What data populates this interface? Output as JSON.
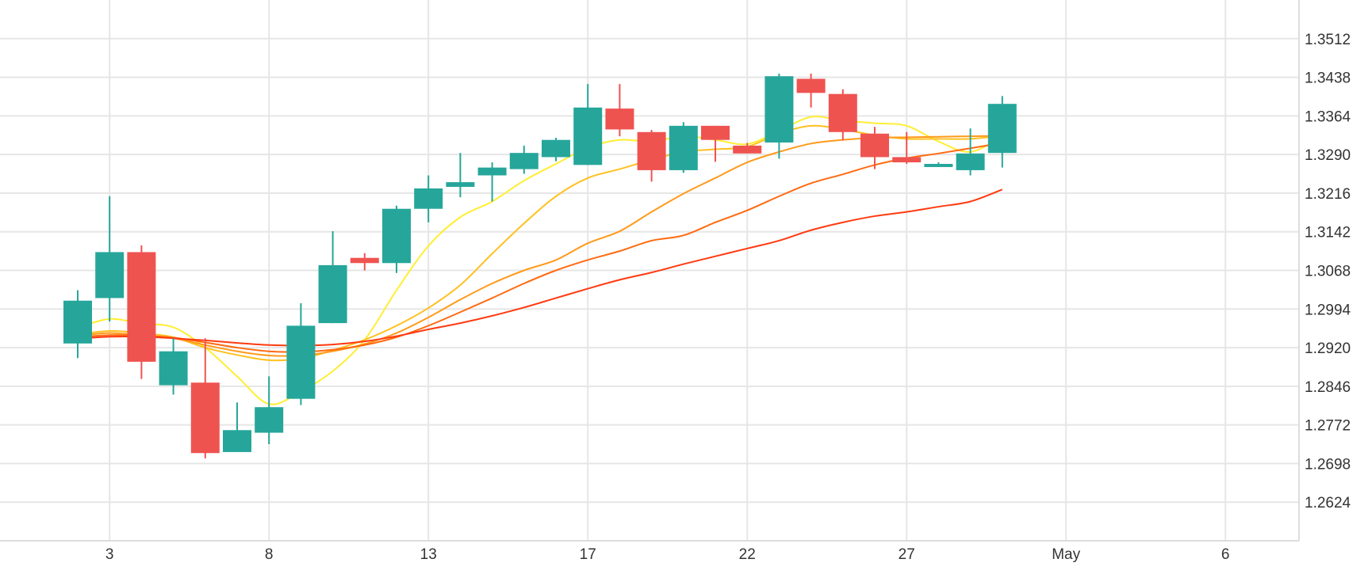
{
  "chart_data": {
    "type": "candlestick",
    "x_axis": {
      "ticks": [
        {
          "index": 1,
          "label": "3"
        },
        {
          "index": 6,
          "label": "8"
        },
        {
          "index": 11,
          "label": "13"
        },
        {
          "index": 16,
          "label": "17"
        },
        {
          "index": 21,
          "label": "22"
        },
        {
          "index": 26,
          "label": "27"
        },
        {
          "index": 31,
          "label": "May"
        },
        {
          "index": 36,
          "label": "6"
        }
      ]
    },
    "y_axis": {
      "ticks": [
        "1.3512",
        "1.3438",
        "1.3364",
        "1.3290",
        "1.3216",
        "1.3142",
        "1.3068",
        "1.2994",
        "1.2920",
        "1.2846",
        "1.2772",
        "1.2698",
        "1.2624"
      ],
      "range": [
        1.255,
        1.3586
      ],
      "position": "right"
    },
    "grid": true,
    "colors": {
      "up": "#26a69a",
      "down": "#ef5350",
      "grid": "#e6e6e6"
    },
    "candles": [
      {
        "o": 1.2928,
        "h": 1.303,
        "l": 1.29,
        "c": 1.301
      },
      {
        "o": 1.3015,
        "h": 1.321,
        "l": 1.297,
        "c": 1.3103
      },
      {
        "o": 1.3103,
        "h": 1.3116,
        "l": 1.286,
        "c": 1.2893
      },
      {
        "o": 1.2848,
        "h": 1.2938,
        "l": 1.283,
        "c": 1.2913
      },
      {
        "o": 1.2853,
        "h": 1.2938,
        "l": 1.2708,
        "c": 1.2718
      },
      {
        "o": 1.272,
        "h": 1.2815,
        "l": 1.272,
        "c": 1.2762
      },
      {
        "o": 1.2757,
        "h": 1.2865,
        "l": 1.2735,
        "c": 1.2806
      },
      {
        "o": 1.2822,
        "h": 1.3005,
        "l": 1.281,
        "c": 1.2962
      },
      {
        "o": 1.2967,
        "h": 1.3143,
        "l": 1.2967,
        "c": 1.3078
      },
      {
        "o": 1.3092,
        "h": 1.3101,
        "l": 1.3068,
        "c": 1.3082
      },
      {
        "o": 1.3082,
        "h": 1.3192,
        "l": 1.3063,
        "c": 1.3186
      },
      {
        "o": 1.3186,
        "h": 1.325,
        "l": 1.316,
        "c": 1.3225
      },
      {
        "o": 1.3228,
        "h": 1.3293,
        "l": 1.3208,
        "c": 1.3237
      },
      {
        "o": 1.325,
        "h": 1.3275,
        "l": 1.32,
        "c": 1.3265
      },
      {
        "o": 1.3262,
        "h": 1.3307,
        "l": 1.3253,
        "c": 1.3293
      },
      {
        "o": 1.3285,
        "h": 1.3322,
        "l": 1.3277,
        "c": 1.3318
      },
      {
        "o": 1.327,
        "h": 1.3425,
        "l": 1.327,
        "c": 1.338
      },
      {
        "o": 1.3378,
        "h": 1.3425,
        "l": 1.3325,
        "c": 1.3338
      },
      {
        "o": 1.3333,
        "h": 1.3337,
        "l": 1.3238,
        "c": 1.326
      },
      {
        "o": 1.326,
        "h": 1.3352,
        "l": 1.3255,
        "c": 1.3345
      },
      {
        "o": 1.3345,
        "h": 1.3345,
        "l": 1.3276,
        "c": 1.3318
      },
      {
        "o": 1.3307,
        "h": 1.3312,
        "l": 1.3292,
        "c": 1.3292
      },
      {
        "o": 1.3313,
        "h": 1.3445,
        "l": 1.3282,
        "c": 1.344
      },
      {
        "o": 1.3435,
        "h": 1.3445,
        "l": 1.338,
        "c": 1.3408
      },
      {
        "o": 1.3406,
        "h": 1.3415,
        "l": 1.3317,
        "c": 1.3333
      },
      {
        "o": 1.333,
        "h": 1.3343,
        "l": 1.3262,
        "c": 1.3285
      },
      {
        "o": 1.3285,
        "h": 1.3333,
        "l": 1.3272,
        "c": 1.3275
      },
      {
        "o": 1.3266,
        "h": 1.3275,
        "l": 1.3266,
        "c": 1.3272
      },
      {
        "o": 1.326,
        "h": 1.334,
        "l": 1.325,
        "c": 1.3292
      },
      {
        "o": 1.3293,
        "h": 1.3402,
        "l": 1.3265,
        "c": 1.3387
      }
    ],
    "candle_index": [
      0,
      1,
      2,
      3,
      4,
      5,
      6,
      7,
      8,
      9,
      10,
      11,
      12,
      13,
      14,
      15,
      16,
      17,
      18,
      19,
      20,
      21,
      22,
      23,
      24,
      25,
      26,
      27,
      28,
      29
    ],
    "x_slots": [
      0,
      1,
      2,
      3,
      4,
      5,
      6,
      7,
      8,
      9,
      10,
      11,
      12,
      13,
      14,
      15,
      16,
      17,
      18,
      19,
      20,
      21,
      22,
      23,
      24,
      25,
      26,
      27,
      28,
      29
    ],
    "moving_averages": [
      {
        "color": "#ffee33",
        "values": [
          1.2958,
          1.2975,
          1.2966,
          1.2959,
          1.292,
          1.2865,
          1.2812,
          1.2836,
          1.2875,
          1.2935,
          1.303,
          1.3115,
          1.317,
          1.32,
          1.324,
          1.3272,
          1.3303,
          1.3318,
          1.3315,
          1.3325,
          1.3318,
          1.331,
          1.3335,
          1.3362,
          1.3355,
          1.335,
          1.3345,
          1.3315,
          1.3295,
          1.3325
        ]
      },
      {
        "color": "#ffc020",
        "values": [
          1.2945,
          1.2952,
          1.2948,
          1.294,
          1.292,
          1.2906,
          1.2896,
          1.2899,
          1.2915,
          1.2935,
          1.2962,
          1.2996,
          1.304,
          1.31,
          1.3158,
          1.321,
          1.3245,
          1.3262,
          1.328,
          1.3295,
          1.33,
          1.3305,
          1.333,
          1.3345,
          1.3338,
          1.3327,
          1.332,
          1.332,
          1.332,
          1.3326
        ]
      },
      {
        "color": "#ff9a1a",
        "values": [
          1.2943,
          1.2948,
          1.2944,
          1.2938,
          1.2925,
          1.2913,
          1.2905,
          1.2905,
          1.2913,
          1.2927,
          1.2948,
          1.2978,
          1.3012,
          1.3043,
          1.3068,
          1.3088,
          1.312,
          1.3143,
          1.318,
          1.3215,
          1.3245,
          1.3275,
          1.3295,
          1.3311,
          1.3318,
          1.3322,
          1.3323,
          1.3324,
          1.3325,
          1.3326
        ]
      },
      {
        "color": "#ff6a10",
        "values": [
          1.294,
          1.2944,
          1.2943,
          1.2939,
          1.293,
          1.292,
          1.2913,
          1.2912,
          1.2916,
          1.2925,
          1.294,
          1.2962,
          1.2988,
          1.3015,
          1.3043,
          1.3068,
          1.3088,
          1.3105,
          1.3125,
          1.3135,
          1.316,
          1.3183,
          1.321,
          1.3235,
          1.3252,
          1.327,
          1.3283,
          1.3292,
          1.3302,
          1.3312
        ]
      },
      {
        "color": "#ff3a10",
        "values": [
          1.2937,
          1.2941,
          1.2941,
          1.2938,
          1.2934,
          1.2929,
          1.2925,
          1.2924,
          1.2926,
          1.2932,
          1.2942,
          1.2955,
          1.2967,
          1.2981,
          1.2997,
          1.3015,
          1.3033,
          1.305,
          1.3064,
          1.308,
          1.3095,
          1.311,
          1.3125,
          1.3145,
          1.316,
          1.3172,
          1.318,
          1.319,
          1.32,
          1.3223
        ]
      }
    ]
  }
}
